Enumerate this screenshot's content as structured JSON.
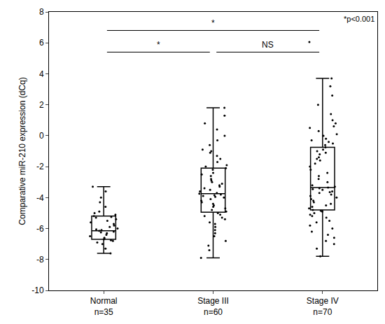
{
  "chart_data": {
    "type": "box",
    "ylabel": "Comparative miR-210 expression (dCq)",
    "categories": [
      "Normal\nn=35",
      "Stage III\nn=60",
      "Stage IV\nn=70"
    ],
    "color": "#000000",
    "ylim": [
      -10,
      8
    ],
    "yticks": [
      -10,
      -8,
      -6,
      -4,
      -2,
      0,
      2,
      4,
      6,
      8
    ],
    "grid": false,
    "q1": [
      -6.7,
      -4.95,
      -4.8
    ],
    "median": [
      -6.15,
      -3.75,
      -3.35
    ],
    "q3": [
      -5.2,
      -2.1,
      -0.75
    ],
    "lowerfence": [
      -7.6,
      -7.9,
      -7.8
    ],
    "upperfence": [
      -3.3,
      1.8,
      3.7
    ],
    "points": [
      [
        -7.6,
        -7.3,
        -7.0,
        -6.9,
        -6.8,
        -6.75,
        -6.7,
        -6.65,
        -6.6,
        -6.5,
        -6.4,
        -6.3,
        -6.25,
        -6.2,
        -6.15,
        -6.1,
        -6.05,
        -6.0,
        -5.9,
        -5.8,
        -5.7,
        -5.6,
        -5.5,
        -5.4,
        -5.3,
        -5.25,
        -5.2,
        -5.1,
        -5.0,
        -4.9,
        -4.6,
        -4.3,
        -4.0,
        -3.6,
        -3.3
      ],
      [
        -7.9,
        -7.4,
        -7.1,
        -6.8,
        -6.5,
        -6.3,
        -6.1,
        -5.9,
        -5.7,
        -5.6,
        -5.4,
        -5.3,
        -5.2,
        -5.1,
        -5.0,
        -4.9,
        -4.8,
        -4.7,
        -4.6,
        -4.5,
        -4.4,
        -4.3,
        -4.2,
        -4.1,
        -4.0,
        -3.95,
        -3.9,
        -3.85,
        -3.8,
        -3.75,
        -3.7,
        -3.6,
        -3.5,
        -3.4,
        -3.3,
        -3.2,
        -3.1,
        -3.0,
        -2.9,
        -2.8,
        -2.6,
        -2.5,
        -2.4,
        -2.2,
        -2.1,
        -2.0,
        -1.9,
        -1.7,
        -1.5,
        -1.3,
        -1.1,
        -1.0,
        -0.9,
        -0.6,
        -0.3,
        0.0,
        0.4,
        0.8,
        1.3,
        1.8
      ],
      [
        -7.8,
        -7.3,
        -7.0,
        -6.8,
        -6.6,
        -6.4,
        -6.2,
        -6.0,
        -5.8,
        -5.6,
        -5.5,
        -5.3,
        -5.2,
        -5.1,
        -5.0,
        -4.9,
        -4.85,
        -4.8,
        -4.7,
        -4.6,
        -4.5,
        -4.4,
        -4.3,
        -4.2,
        -4.1,
        -4.0,
        -3.9,
        -3.8,
        -3.7,
        -3.65,
        -3.6,
        -3.5,
        -3.45,
        -3.4,
        -3.35,
        -3.3,
        -3.2,
        -3.0,
        -2.8,
        -2.6,
        -2.4,
        -2.2,
        -2.0,
        -1.8,
        -1.6,
        -1.5,
        -1.4,
        -1.2,
        -1.1,
        -1.0,
        -0.9,
        -0.75,
        -0.6,
        -0.5,
        -0.4,
        -0.3,
        -0.2,
        0.0,
        0.1,
        0.3,
        0.5,
        0.6,
        0.8,
        1.0,
        1.4,
        2.0,
        2.6,
        3.2,
        3.7,
        6.05
      ]
    ],
    "comparisons": [
      {
        "from": 0,
        "to": 1,
        "y": 5.4,
        "label": "*"
      },
      {
        "from": 0,
        "to": 2,
        "y": 6.8,
        "label": "*"
      },
      {
        "from": 1,
        "to": 2,
        "y": 5.4,
        "label": "NS"
      }
    ],
    "annotations": [
      "*p<0.001"
    ]
  }
}
